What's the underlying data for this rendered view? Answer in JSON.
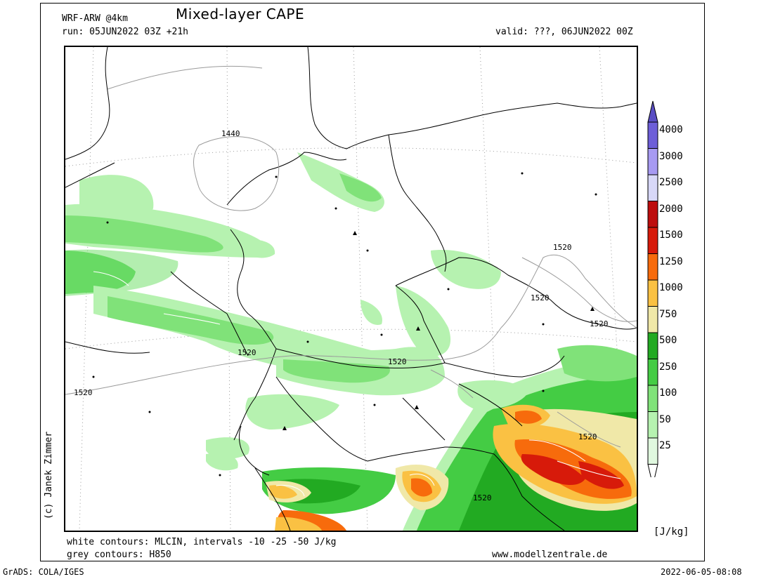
{
  "header": {
    "model": "WRF-ARW @4km",
    "title": "Mixed-layer CAPE",
    "run": "run: 05JUN2022 03Z +21h",
    "valid": "valid: ???, 06JUN2022 00Z"
  },
  "map": {
    "contour_labels": [
      "1440",
      "1520",
      "1520",
      "1520",
      "1520",
      "1520",
      "1520",
      "1520",
      "1520"
    ]
  },
  "legend": {
    "levels": [
      "4000",
      "3000",
      "2500",
      "2000",
      "1500",
      "1250",
      "1000",
      "750",
      "500",
      "250",
      "100",
      "50",
      "25"
    ],
    "colors": [
      "#ffffff",
      "#e0f8df",
      "#b6f2b0",
      "#80e279",
      "#44cc44",
      "#22aa22",
      "#f0e8a8",
      "#fac143",
      "#f76b0c",
      "#d71a0a",
      "#bd0d0d",
      "#d8d8f8",
      "#a79af2",
      "#6d5ed8",
      "#5a4ec4"
    ],
    "unit": "[J/kg]"
  },
  "footer": {
    "note1": "white contours: MLCIN, intervals -10 -25 -50 J/kg",
    "note2": "grey contours: H850",
    "website": "www.modellzentrale.de",
    "software": "GrADS: COLA/IGES",
    "timestamp": "2022-06-05-08:08",
    "credit": "(c) Janek Zimmer"
  }
}
